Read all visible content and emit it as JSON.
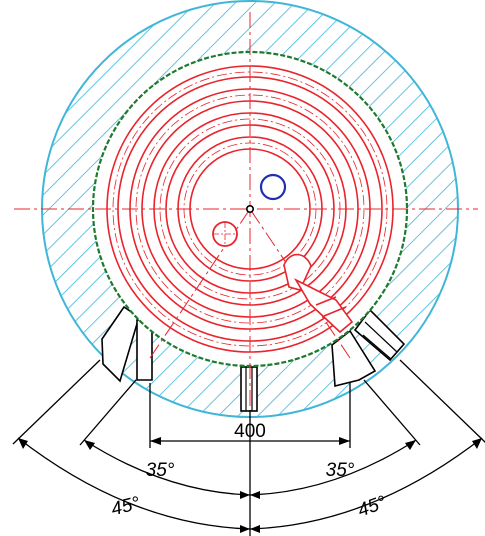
{
  "dimensions": {
    "width_label": "400",
    "inner_left_angle": "35°",
    "inner_right_angle": "35°",
    "outer_left_angle": "45°",
    "outer_right_angle": "45°"
  },
  "colors": {
    "outer_ring": "#3fb6d8",
    "hatch": "#3fb6d8",
    "coil": "#e8242c",
    "inner_boundary": "#1e7a2e",
    "pipe_marker": "#1f2fb0",
    "dimension": "#000000",
    "centerline": "#e8242c"
  }
}
